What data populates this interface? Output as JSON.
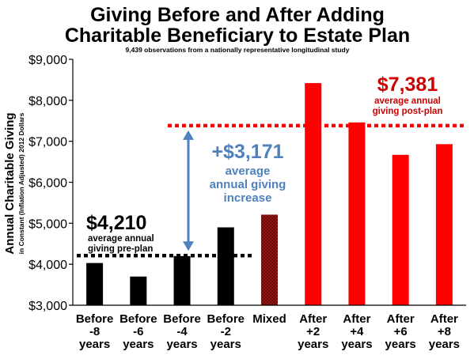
{
  "chart_data": {
    "type": "bar",
    "title_line1": "Giving Before and After Adding",
    "title_line2": "Charitable Beneficiary to Estate Plan",
    "subtitle": "9,439 observations from a nationally representative longitudinal study",
    "ylabel": "Annual Charitable Giving",
    "ylabel_sub": "in Constant (Inflation Adjusted) 2012  Dollars",
    "ylim": [
      3000,
      9000
    ],
    "yticks": [
      3000,
      4000,
      5000,
      6000,
      7000,
      8000,
      9000
    ],
    "ytick_labels": [
      "$3,000",
      "$4,000",
      "$5,000",
      "$6,000",
      "$7,000",
      "$8,000",
      "$9,000"
    ],
    "grid": false,
    "categories": [
      [
        "Before",
        "-8",
        "years"
      ],
      [
        "Before",
        "-6",
        "years"
      ],
      [
        "Before",
        "-4",
        "years"
      ],
      [
        "Before",
        "-2",
        "years"
      ],
      [
        "Mixed"
      ],
      [
        "After",
        "+2",
        "years"
      ],
      [
        "After",
        "+4",
        "years"
      ],
      [
        "After",
        "+6",
        "years"
      ],
      [
        "After",
        "+8",
        "years"
      ]
    ],
    "values": [
      4030,
      3700,
      4200,
      4900,
      5210,
      8420,
      7460,
      6670,
      6930
    ],
    "bar_groups": [
      "pre",
      "pre",
      "pre",
      "pre",
      "mixed",
      "post",
      "post",
      "post",
      "post"
    ],
    "colors": {
      "pre": "#000000",
      "mixed": "#8b1a1a",
      "post": "#ff0000",
      "increase": "#4f81bd",
      "post_text": "#cc0000"
    },
    "annotations": {
      "pre_plan": {
        "value": 4210,
        "amount": "$4,210",
        "line1": "average annual",
        "line2": "giving pre-plan"
      },
      "post_plan": {
        "value": 7381,
        "amount": "$7,381",
        "line1": "average annual",
        "line2": "giving post-plan"
      },
      "increase": {
        "amount": "+$3,171",
        "line1": "average",
        "line2": "annual giving",
        "line3": "increase"
      }
    }
  }
}
